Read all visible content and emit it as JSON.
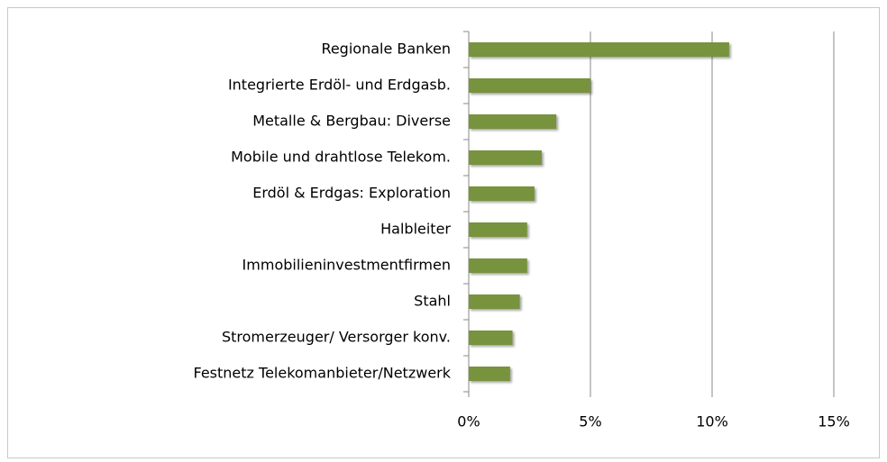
{
  "chart_data": {
    "type": "barh",
    "categories": [
      "Regionale Banken",
      "Integrierte Erdöl- und Erdgasb.",
      "Metalle & Bergbau: Diverse",
      "Mobile und drahtlose Telekom.",
      "Erdöl & Erdgas: Exploration",
      "Halbleiter",
      "Immobilieninvestmentfirmen",
      "Stahl",
      "Stromerzeuger/ Versorger konv.",
      "Festnetz Telekomanbieter/Netzwerk"
    ],
    "values": [
      10.7,
      5.0,
      3.6,
      3.0,
      2.7,
      2.4,
      2.4,
      2.1,
      1.8,
      1.7
    ],
    "color": "#77933c",
    "xlim": [
      0,
      15
    ],
    "xticks": [
      {
        "value": 0,
        "label": "0%"
      },
      {
        "value": 5,
        "label": "5%"
      },
      {
        "value": 10,
        "label": "10%"
      },
      {
        "value": 15,
        "label": "15%"
      }
    ],
    "grid": true
  }
}
